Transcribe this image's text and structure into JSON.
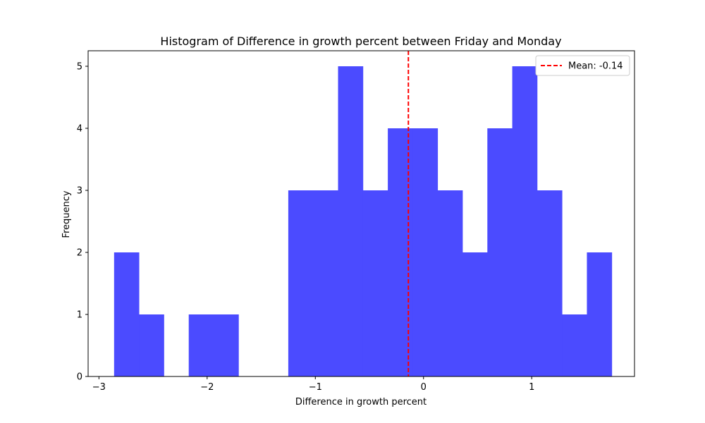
{
  "chart_data": {
    "type": "bar",
    "title": "Histogram of Difference in growth percent between Friday and Monday",
    "xlabel": "Difference in growth percent",
    "ylabel": "Frequency",
    "xlim": [
      -3.1,
      1.95
    ],
    "ylim": [
      0,
      5.25
    ],
    "xticks": [
      -3,
      -2,
      -1,
      0,
      1
    ],
    "xtick_labels": [
      "−3",
      "−2",
      "−1",
      "0",
      "1"
    ],
    "yticks": [
      0,
      1,
      2,
      3,
      4,
      5
    ],
    "ytick_labels": [
      "0",
      "1",
      "2",
      "3",
      "4",
      "5"
    ],
    "bin_edges": [
      -2.86,
      -2.63,
      -2.4,
      -2.17,
      -1.94,
      -1.71,
      -1.48,
      -1.25,
      -1.02,
      -0.79,
      -0.56,
      -0.33,
      -0.1,
      0.13,
      0.36,
      0.59,
      0.82,
      1.05,
      1.28,
      1.51,
      1.74
    ],
    "counts": [
      2,
      1,
      0,
      1,
      1,
      0,
      0,
      3,
      3,
      5,
      3,
      4,
      4,
      3,
      2,
      4,
      5,
      3,
      1,
      2
    ],
    "bar_color": "#4b4bff",
    "mean": -0.14,
    "mean_line_color": "#ff0000",
    "grid": false,
    "legend": {
      "placement": "top-right",
      "entries": [
        "Mean: -0.14"
      ]
    }
  }
}
